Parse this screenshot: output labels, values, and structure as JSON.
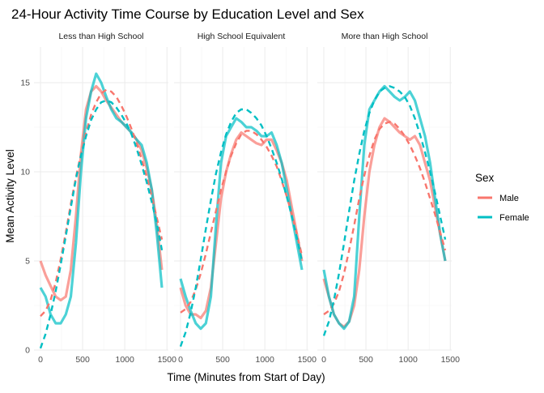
{
  "chart_data": {
    "type": "line",
    "title": "24-Hour Activity Time Course by Education Level and Sex",
    "xlabel": "Time (Minutes from Start of Day)",
    "ylabel": "Mean Activity Level",
    "xlim": [
      0,
      1440
    ],
    "ylim": [
      0,
      17
    ],
    "x_ticks": [
      0,
      500,
      1000,
      1500
    ],
    "x_tick_labels": [
      "0",
      "500",
      "1000",
      "1500"
    ],
    "y_ticks": [
      0,
      5,
      10,
      15
    ],
    "y_tick_labels": [
      "0",
      "5",
      "10",
      "15"
    ],
    "grid": true,
    "legend": {
      "title": "Sex",
      "position": "right",
      "entries": [
        {
          "label": "Male",
          "color": "#F8766D"
        },
        {
          "label": "Female",
          "color": "#00BFC4"
        }
      ]
    },
    "panels": [
      {
        "label": "Less than High School",
        "series": [
          {
            "name": "Male",
            "color": "#F8766D",
            "x": [
              0,
              60,
              120,
              180,
              240,
              300,
              360,
              420,
              480,
              540,
              600,
              660,
              720,
              780,
              840,
              900,
              960,
              1020,
              1080,
              1140,
              1200,
              1260,
              1320,
              1380,
              1440
            ],
            "y": [
              5.0,
              4.2,
              3.6,
              3.0,
              2.8,
              3.0,
              4.5,
              7.5,
              11.0,
              13.5,
              14.5,
              14.8,
              14.5,
              14.0,
              13.6,
              13.2,
              12.8,
              12.5,
              12.2,
              11.8,
              11.2,
              10.2,
              9.0,
              7.0,
              4.5
            ],
            "smooth_y": [
              1.9,
              2.2,
              2.8,
              3.8,
              5.1,
              6.6,
              8.2,
              9.7,
              11.0,
              12.2,
              13.2,
              13.9,
              14.4,
              14.6,
              14.5,
              14.2,
              13.7,
              13.1,
              12.4,
              11.6,
              10.7,
              9.7,
              8.6,
              7.4,
              6.2
            ]
          },
          {
            "name": "Female",
            "color": "#00BFC4",
            "x": [
              0,
              60,
              120,
              180,
              240,
              300,
              360,
              420,
              480,
              540,
              600,
              660,
              720,
              780,
              840,
              900,
              960,
              1020,
              1080,
              1140,
              1200,
              1260,
              1320,
              1380,
              1440
            ],
            "y": [
              3.5,
              3.0,
              2.0,
              1.5,
              1.5,
              2.0,
              3.0,
              6.0,
              10.0,
              13.0,
              14.5,
              15.5,
              15.0,
              14.2,
              13.5,
              13.0,
              12.8,
              12.5,
              12.2,
              11.8,
              11.5,
              10.5,
              9.0,
              6.5,
              3.5
            ],
            "smooth_y": [
              0.1,
              0.9,
              2.0,
              3.3,
              4.8,
              6.4,
              8.0,
              9.6,
              10.9,
              12.0,
              12.9,
              13.5,
              13.9,
              14.0,
              13.9,
              13.6,
              13.2,
              12.7,
              12.1,
              11.3,
              10.4,
              9.4,
              8.3,
              7.1,
              5.6
            ]
          }
        ]
      },
      {
        "label": "High School Equivalent",
        "series": [
          {
            "name": "Male",
            "color": "#F8766D",
            "x": [
              0,
              60,
              120,
              180,
              240,
              300,
              360,
              420,
              480,
              540,
              600,
              660,
              720,
              780,
              840,
              900,
              960,
              1020,
              1080,
              1140,
              1200,
              1260,
              1320,
              1380,
              1440
            ],
            "y": [
              3.5,
              2.5,
              2.0,
              2.0,
              1.8,
              2.2,
              3.5,
              6.0,
              8.5,
              10.0,
              11.0,
              11.8,
              12.2,
              12.0,
              11.8,
              11.6,
              11.5,
              11.8,
              11.8,
              11.2,
              10.5,
              9.5,
              8.0,
              6.5,
              5.0
            ],
            "smooth_y": [
              2.1,
              2.3,
              2.7,
              3.4,
              4.3,
              5.4,
              6.6,
              7.8,
              9.0,
              10.0,
              10.9,
              11.6,
              12.1,
              12.3,
              12.3,
              12.1,
              11.8,
              11.4,
              10.9,
              10.3,
              9.5,
              8.6,
              7.6,
              6.5,
              5.3
            ]
          },
          {
            "name": "Female",
            "color": "#00BFC4",
            "x": [
              0,
              60,
              120,
              180,
              240,
              300,
              360,
              420,
              480,
              540,
              600,
              660,
              720,
              780,
              840,
              900,
              960,
              1020,
              1080,
              1140,
              1200,
              1260,
              1320,
              1380,
              1440
            ],
            "y": [
              4.0,
              3.0,
              2.2,
              1.5,
              1.2,
              1.5,
              3.0,
              7.0,
              10.5,
              12.0,
              12.5,
              13.0,
              12.8,
              12.5,
              12.5,
              12.3,
              12.0,
              12.0,
              12.2,
              11.5,
              10.5,
              9.0,
              7.5,
              6.0,
              4.5
            ],
            "smooth_y": [
              0.2,
              1.0,
              2.1,
              3.5,
              5.1,
              6.8,
              8.4,
              9.9,
              11.1,
              12.1,
              12.8,
              13.3,
              13.5,
              13.5,
              13.3,
              13.0,
              12.6,
              12.0,
              11.3,
              10.5,
              9.6,
              8.6,
              7.5,
              6.3,
              5.0
            ]
          }
        ]
      },
      {
        "label": "More than High School",
        "series": [
          {
            "name": "Male",
            "color": "#F8766D",
            "x": [
              0,
              60,
              120,
              180,
              240,
              300,
              360,
              420,
              480,
              540,
              600,
              660,
              720,
              780,
              840,
              900,
              960,
              1020,
              1080,
              1140,
              1200,
              1260,
              1320,
              1380,
              1440
            ],
            "y": [
              4.0,
              3.0,
              2.0,
              1.5,
              1.3,
              1.6,
              2.5,
              4.5,
              7.5,
              10.0,
              11.5,
              12.5,
              13.0,
              12.8,
              12.5,
              12.2,
              12.0,
              11.8,
              12.0,
              11.5,
              10.5,
              9.5,
              8.0,
              6.5,
              5.0
            ],
            "smooth_y": [
              2.0,
              2.2,
              2.6,
              3.3,
              4.3,
              5.6,
              7.0,
              8.5,
              9.8,
              10.9,
              11.8,
              12.4,
              12.7,
              12.8,
              12.7,
              12.4,
              12.0,
              11.5,
              10.9,
              10.2,
              9.4,
              8.5,
              7.6,
              6.6,
              5.6
            ]
          },
          {
            "name": "Female",
            "color": "#00BFC4",
            "x": [
              0,
              60,
              120,
              180,
              240,
              300,
              360,
              420,
              480,
              540,
              600,
              660,
              720,
              780,
              840,
              900,
              960,
              1020,
              1080,
              1140,
              1200,
              1260,
              1320,
              1380,
              1440
            ],
            "y": [
              4.5,
              3.0,
              2.0,
              1.5,
              1.2,
              1.6,
              3.0,
              7.5,
              11.5,
              13.5,
              14.0,
              14.5,
              14.8,
              14.5,
              14.2,
              14.0,
              14.2,
              14.5,
              14.0,
              13.0,
              12.0,
              10.5,
              8.5,
              6.5,
              5.0
            ],
            "smooth_y": [
              0.8,
              1.6,
              2.8,
              4.3,
              6.0,
              7.8,
              9.5,
              11.0,
              12.3,
              13.3,
              14.0,
              14.5,
              14.7,
              14.8,
              14.7,
              14.5,
              14.2,
              13.7,
              13.0,
              12.1,
              11.1,
              10.0,
              8.8,
              7.5,
              6.2
            ]
          }
        ]
      }
    ]
  }
}
